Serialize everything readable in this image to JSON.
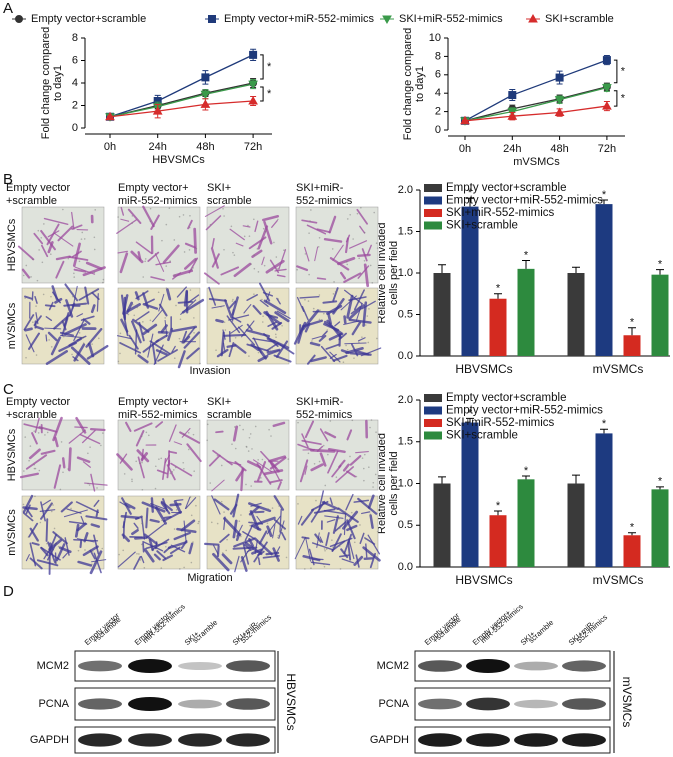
{
  "panel_labels": [
    "A",
    "B",
    "C",
    "D"
  ],
  "chart_data": [
    {
      "type": "line",
      "xlabel": "HBVSMCs",
      "ylabel": [
        "Fold change compared",
        "to day1"
      ],
      "categories": [
        "0h",
        "24h",
        "48h",
        "72h"
      ],
      "ylim": [
        0,
        8
      ],
      "yticks": [
        0,
        2,
        4,
        6,
        8
      ],
      "series": [
        {
          "name": "Empty vector+scramble",
          "color": "#333333",
          "marker": "circle",
          "values": [
            1,
            2.0,
            3.1,
            4.0
          ],
          "errors": [
            0.05,
            0.3,
            0.3,
            0.4
          ]
        },
        {
          "name": "Empty vector+miR-552-mimics",
          "color": "#1f3a7a",
          "marker": "square",
          "values": [
            1,
            2.4,
            4.5,
            6.5
          ],
          "errors": [
            0.05,
            0.5,
            0.6,
            0.5
          ]
        },
        {
          "name": "SKI+miR-552-mimics",
          "color": "#3a9a4a",
          "marker": "triangle-down",
          "values": [
            1,
            1.9,
            3.0,
            3.9
          ],
          "errors": [
            0.05,
            0.4,
            0.4,
            0.4
          ]
        },
        {
          "name": "SKI+scramble",
          "color": "#d62c2c",
          "marker": "triangle-up",
          "values": [
            1,
            1.5,
            2.1,
            2.4
          ],
          "errors": [
            0.05,
            0.6,
            0.5,
            0.4
          ]
        }
      ],
      "annotations": [
        "*",
        "*"
      ]
    },
    {
      "type": "line",
      "xlabel": "mVSMCs",
      "ylabel": [
        "Fold change compared",
        "to day1"
      ],
      "categories": [
        "0h",
        "24h",
        "48h",
        "72h"
      ],
      "ylim": [
        0,
        10
      ],
      "yticks": [
        0,
        2,
        4,
        6,
        8,
        10
      ],
      "series": [
        {
          "color": "#333333",
          "marker": "circle",
          "values": [
            1,
            2.3,
            3.4,
            4.7
          ],
          "errors": [
            0.05,
            0.4,
            0.4,
            0.4
          ]
        },
        {
          "color": "#1f3a7a",
          "marker": "square",
          "values": [
            1,
            3.8,
            5.7,
            7.6
          ],
          "errors": [
            0.05,
            0.6,
            0.7,
            0.5
          ]
        },
        {
          "color": "#3a9a4a",
          "marker": "triangle-down",
          "values": [
            1,
            2.0,
            3.3,
            4.6
          ],
          "errors": [
            0.05,
            0.4,
            0.4,
            0.4
          ]
        },
        {
          "color": "#d62c2c",
          "marker": "triangle-up",
          "values": [
            1,
            1.5,
            1.9,
            2.6
          ],
          "errors": [
            0.05,
            0.4,
            0.4,
            0.5
          ]
        }
      ],
      "annotations": [
        "*",
        "*"
      ]
    },
    {
      "type": "bar",
      "ylabel": [
        "Relative cell invaded",
        "cells per field"
      ],
      "categories": [
        "HBVSMCs",
        "mVSMCs"
      ],
      "ylim": [
        0,
        2
      ],
      "yticks": [
        {
          "value": 0,
          "label": "0.0"
        },
        0.5,
        {
          "value": 1,
          "label": "1.0"
        },
        1.5,
        {
          "value": 2,
          "label": "2.0"
        }
      ],
      "series": [
        {
          "name": "Empty vector+scramble",
          "color": "#3a3a3a",
          "values": [
            1.0,
            1.0
          ],
          "errors": [
            0.1,
            0.07
          ],
          "marks": [
            null,
            null
          ]
        },
        {
          "name": "Empty vector+miR-552-mimics",
          "color": "#1d3a80",
          "values": [
            1.8,
            1.83
          ],
          "errors": [
            0.1,
            0.05
          ],
          "marks": [
            "*",
            "*"
          ]
        },
        {
          "name": "SKI+miR-552-mimics",
          "color": "#d42a20",
          "values": [
            0.69,
            0.25
          ],
          "errors": [
            0.06,
            0.09
          ],
          "marks": [
            "*",
            "*"
          ]
        },
        {
          "name": "SKI+scramble",
          "color": "#2d8a3e",
          "values": [
            1.05,
            0.98
          ],
          "errors": [
            0.1,
            0.06
          ],
          "marks": [
            "*",
            "*"
          ]
        }
      ]
    },
    {
      "type": "bar",
      "ylabel": [
        "Relative cell invaded",
        "cells per field"
      ],
      "categories": [
        "HBVSMCs",
        "mVSMCs"
      ],
      "ylim": [
        0,
        2
      ],
      "yticks": [
        {
          "value": 0,
          "label": "0.0"
        },
        0.5,
        {
          "value": 1,
          "label": "1.0"
        },
        1.5,
        {
          "value": 2,
          "label": "2.0"
        }
      ],
      "series": [
        {
          "name": "Empty vector+scramble",
          "color": "#3a3a3a",
          "values": [
            1.0,
            1.0
          ],
          "errors": [
            0.08,
            0.1
          ],
          "marks": [
            null,
            null
          ]
        },
        {
          "name": "Empty vector+miR-552-mimics",
          "color": "#1d3a80",
          "values": [
            1.73,
            1.6
          ],
          "errors": [
            0.05,
            0.05
          ],
          "marks": [
            "*",
            "*"
          ]
        },
        {
          "name": "SKI+miR-552-mimics",
          "color": "#d42a20",
          "values": [
            0.62,
            0.38
          ],
          "errors": [
            0.05,
            0.03
          ],
          "marks": [
            "*",
            "*"
          ]
        },
        {
          "name": "SKI+scramble",
          "color": "#2d8a3e",
          "values": [
            1.05,
            0.93
          ],
          "errors": [
            0.04,
            0.03
          ],
          "marks": [
            "*",
            "*"
          ]
        }
      ]
    }
  ],
  "invasion": {
    "columns": [
      [
        "Empty vector",
        "+scramble"
      ],
      [
        "Empty vector+",
        "miR-552-mimics"
      ],
      [
        "SKI+",
        "scramble"
      ],
      [
        "SKI+miR-",
        "552-mimics"
      ]
    ],
    "rows": [
      "HBVSMCs",
      "mVSMCs"
    ],
    "caption": "Invasion"
  },
  "migration": {
    "columns": [
      [
        "Empty vector",
        "+scramble"
      ],
      [
        "Empty vector+",
        "miR-552-mimics"
      ],
      [
        "SKI+",
        "scramble"
      ],
      [
        "SKI+miR-",
        "552-mimics"
      ]
    ],
    "rows": [
      "HBVSMCs",
      "mVSMCs"
    ],
    "caption": "Migration"
  },
  "blots": [
    {
      "lanes": [
        [
          "Empty vector",
          "+scramble"
        ],
        [
          "Empty vector+",
          "miR-552-mimics"
        ],
        [
          "SKI+",
          "scramble"
        ],
        [
          "SKI+miR-",
          "552-mimics"
        ]
      ],
      "proteins": [
        "MCM2",
        "PCNA",
        "GAPDH"
      ],
      "cell_line": "HBVSMCs"
    },
    {
      "lanes": [
        [
          "Empty vector",
          "+scramble"
        ],
        [
          "Empty vector+",
          "miR-552-mimics"
        ],
        [
          "SKI+",
          "scramble"
        ],
        [
          "SKI+miR-",
          "552-mimics"
        ]
      ],
      "proteins": [
        "MCM2",
        "PCNA",
        "GAPDH"
      ],
      "cell_line": "mVSMCs"
    }
  ]
}
